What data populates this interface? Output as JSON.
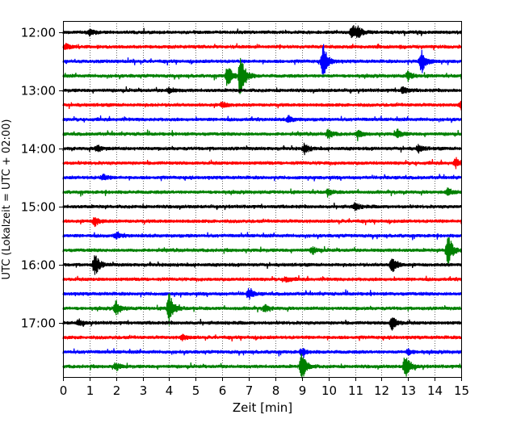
{
  "chart_data": {
    "type": "line",
    "title": "",
    "xlabel": "Zeit  [min]",
    "ylabel": "UTC (Lokalzeit = UTC + 02:00)",
    "xlim": [
      0,
      15
    ],
    "x_ticks": [
      0,
      1,
      2,
      3,
      4,
      5,
      6,
      7,
      8,
      9,
      10,
      11,
      12,
      13,
      14,
      15
    ],
    "x_tick_labels": [
      "0",
      "1",
      "2",
      "3",
      "4",
      "5",
      "6",
      "7",
      "8",
      "9",
      "10",
      "11",
      "12",
      "13",
      "14",
      "15"
    ],
    "y_tick_labels": [
      "12:00",
      "13:00",
      "14:00",
      "15:00",
      "16:00",
      "17:00"
    ],
    "y_tick_rows": [
      0,
      4,
      8,
      12,
      16,
      20
    ],
    "grid": "vertical",
    "trace_colors": [
      "#000000",
      "#ff0000",
      "#0000ff",
      "#008000"
    ],
    "trace_minutes": 15,
    "series": [
      {
        "start": "12:00",
        "events": [
          {
            "t": 10.9,
            "amp": 0.45
          },
          {
            "t": 11.1,
            "amp": 0.35
          },
          {
            "t": 1.0,
            "amp": 0.2
          }
        ]
      },
      {
        "start": "12:15",
        "events": [
          {
            "t": 0.1,
            "amp": 0.2
          }
        ]
      },
      {
        "start": "12:30",
        "events": [
          {
            "t": 9.8,
            "amp": 1.2
          },
          {
            "t": 13.5,
            "amp": 0.9
          }
        ]
      },
      {
        "start": "12:45",
        "events": [
          {
            "t": 6.2,
            "amp": 0.8
          },
          {
            "t": 6.7,
            "amp": 1.6
          },
          {
            "t": 13.0,
            "amp": 0.3
          }
        ]
      },
      {
        "start": "13:00",
        "events": [
          {
            "t": 4.0,
            "amp": 0.2
          },
          {
            "t": 12.8,
            "amp": 0.25
          }
        ]
      },
      {
        "start": "13:15",
        "events": [
          {
            "t": 6.0,
            "amp": 0.2
          },
          {
            "t": 15.0,
            "amp": 0.3
          }
        ]
      },
      {
        "start": "13:30",
        "events": [
          {
            "t": 8.5,
            "amp": 0.2
          }
        ]
      },
      {
        "start": "13:45",
        "events": [
          {
            "t": 10.0,
            "amp": 0.3
          },
          {
            "t": 11.1,
            "amp": 0.25
          },
          {
            "t": 12.6,
            "amp": 0.3
          }
        ]
      },
      {
        "start": "14:00",
        "events": [
          {
            "t": 1.3,
            "amp": 0.25
          },
          {
            "t": 9.1,
            "amp": 0.35
          },
          {
            "t": 13.4,
            "amp": 0.25
          }
        ]
      },
      {
        "start": "14:15",
        "events": [
          {
            "t": 14.8,
            "amp": 0.3
          }
        ]
      },
      {
        "start": "14:30",
        "events": [
          {
            "t": 1.5,
            "amp": 0.2
          }
        ]
      },
      {
        "start": "14:45",
        "events": [
          {
            "t": 10.0,
            "amp": 0.2
          },
          {
            "t": 14.5,
            "amp": 0.25
          }
        ]
      },
      {
        "start": "15:00",
        "events": [
          {
            "t": 11.0,
            "amp": 0.25
          }
        ]
      },
      {
        "start": "15:15",
        "events": [
          {
            "t": 1.2,
            "amp": 0.3
          }
        ]
      },
      {
        "start": "15:30",
        "events": [
          {
            "t": 2.0,
            "amp": 0.2
          }
        ]
      },
      {
        "start": "15:45",
        "events": [
          {
            "t": 14.5,
            "amp": 1.2
          },
          {
            "t": 9.4,
            "amp": 0.25
          }
        ]
      },
      {
        "start": "16:00",
        "events": [
          {
            "t": 1.2,
            "amp": 0.8
          },
          {
            "t": 12.4,
            "amp": 0.6
          }
        ]
      },
      {
        "start": "16:15",
        "events": [
          {
            "t": 8.4,
            "amp": 0.2
          }
        ]
      },
      {
        "start": "16:30",
        "events": [
          {
            "t": 7.0,
            "amp": 0.35
          }
        ]
      },
      {
        "start": "16:45",
        "events": [
          {
            "t": 2.0,
            "amp": 0.5
          },
          {
            "t": 4.0,
            "amp": 1.1
          },
          {
            "t": 7.6,
            "amp": 0.25
          }
        ]
      },
      {
        "start": "17:00",
        "events": [
          {
            "t": 12.4,
            "amp": 0.5
          },
          {
            "t": 0.6,
            "amp": 0.2
          }
        ]
      },
      {
        "start": "17:15",
        "events": [
          {
            "t": 4.5,
            "amp": 0.2
          }
        ]
      },
      {
        "start": "17:30",
        "events": [
          {
            "t": 9.0,
            "amp": 0.25
          },
          {
            "t": 13.0,
            "amp": 0.2
          }
        ]
      },
      {
        "start": "17:45",
        "events": [
          {
            "t": 9.0,
            "amp": 1.0
          },
          {
            "t": 12.9,
            "amp": 0.9
          },
          {
            "t": 2.0,
            "amp": 0.25
          }
        ]
      }
    ]
  }
}
